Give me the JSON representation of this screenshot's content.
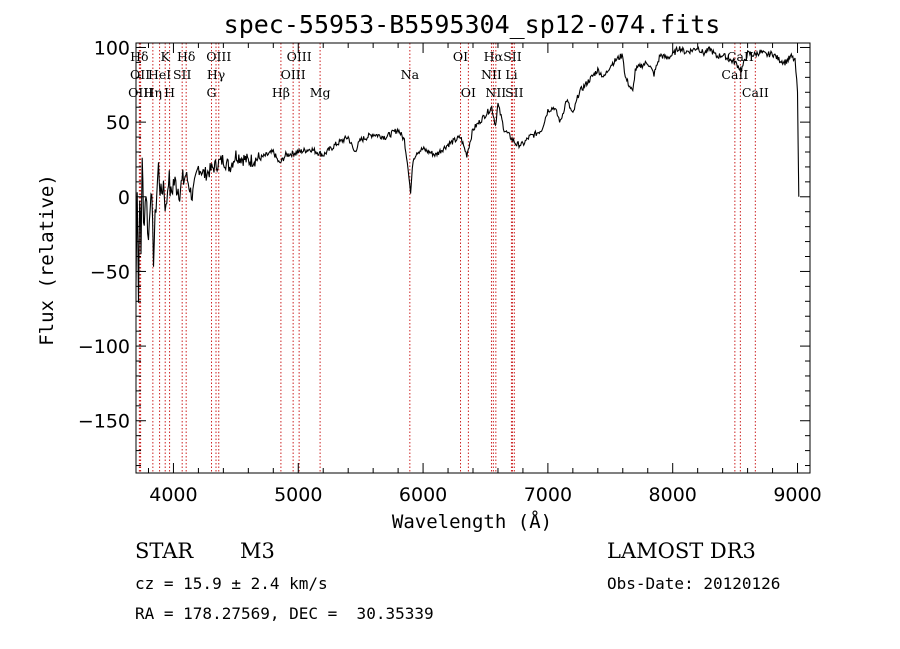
{
  "chart_data": {
    "type": "line",
    "title": "spec-55953-B5595304_sp12-074.fits",
    "xlabel": "Wavelength (Å)",
    "ylabel": "Flux (relative)",
    "xlim": [
      3700,
      9100
    ],
    "ylim": [
      -185,
      103
    ],
    "x_ticks": [
      4000,
      5000,
      6000,
      7000,
      8000,
      9000
    ],
    "y_ticks": [
      -150,
      -100,
      -50,
      0,
      50,
      100
    ],
    "x_tick_labels": [
      "4000",
      "5000",
      "6000",
      "7000",
      "8000",
      "9000"
    ],
    "y_tick_labels": [
      "−150",
      "−100",
      "−50",
      "0",
      "50",
      "100"
    ],
    "series": [
      {
        "name": "flux",
        "x": [
          3700,
          3710,
          3720,
          3730,
          3740,
          3750,
          3760,
          3780,
          3800,
          3820,
          3840,
          3860,
          3880,
          3900,
          3920,
          3940,
          3960,
          3980,
          4000,
          4050,
          4100,
          4150,
          4200,
          4250,
          4300,
          4350,
          4400,
          4450,
          4500,
          4600,
          4700,
          4800,
          4850,
          4900,
          5000,
          5100,
          5200,
          5300,
          5400,
          5450,
          5500,
          5600,
          5700,
          5800,
          5850,
          5880,
          5900,
          5920,
          5950,
          6000,
          6100,
          6200,
          6300,
          6350,
          6400,
          6450,
          6500,
          6550,
          6580,
          6600,
          6650,
          6700,
          6750,
          6800,
          6850,
          6900,
          6950,
          7000,
          7050,
          7100,
          7150,
          7200,
          7250,
          7300,
          7400,
          7450,
          7500,
          7550,
          7600,
          7620,
          7650,
          7680,
          7700,
          7750,
          7800,
          7850,
          7900,
          7950,
          8000,
          8050,
          8100,
          8150,
          8200,
          8250,
          8300,
          8350,
          8400,
          8450,
          8500,
          8550,
          8600,
          8650,
          8700,
          8750,
          8800,
          8850,
          8900,
          8950,
          8980,
          9000,
          9010
        ],
        "y": [
          -60,
          10,
          -70,
          5,
          -40,
          30,
          -20,
          5,
          -30,
          10,
          -40,
          -5,
          20,
          0,
          10,
          -10,
          15,
          0,
          10,
          5,
          15,
          0,
          20,
          15,
          18,
          22,
          25,
          20,
          28,
          24,
          26,
          30,
          22,
          28,
          30,
          32,
          28,
          35,
          40,
          30,
          38,
          42,
          40,
          45,
          38,
          20,
          2,
          25,
          30,
          32,
          28,
          35,
          40,
          28,
          45,
          50,
          55,
          60,
          48,
          62,
          45,
          40,
          35,
          35,
          40,
          42,
          45,
          58,
          60,
          50,
          65,
          55,
          70,
          75,
          85,
          80,
          88,
          92,
          95,
          80,
          75,
          70,
          85,
          88,
          90,
          82,
          95,
          93,
          95,
          100,
          97,
          98,
          100,
          96,
          99,
          94,
          95,
          92,
          90,
          85,
          96,
          95,
          97,
          95,
          96,
          92,
          90,
          94,
          91,
          70,
          0
        ]
      }
    ],
    "line_markers": [
      {
        "label": "Hδ",
        "wave": 3727,
        "row": 0
      },
      {
        "label": "OII",
        "wave": 3733,
        "row": 1
      },
      {
        "label": "OIII",
        "wave": 3737,
        "row": 2
      },
      {
        "label": "K",
        "wave": 3934,
        "row": 0
      },
      {
        "label": "HeI",
        "wave": 3889,
        "row": 1
      },
      {
        "label": "Hη",
        "wave": 3835,
        "row": 2
      },
      {
        "label": "SII",
        "wave": 4070,
        "row": 1
      },
      {
        "label": "H",
        "wave": 3969,
        "row": 2
      },
      {
        "label": "Hδ",
        "wave": 4102,
        "row": 0
      },
      {
        "label": "OIII",
        "wave": 4363,
        "row": 0
      },
      {
        "label": "Hγ",
        "wave": 4341,
        "row": 1
      },
      {
        "label": "G",
        "wave": 4305,
        "row": 2
      },
      {
        "label": "Hβ",
        "wave": 4861,
        "row": 2
      },
      {
        "label": "OIII",
        "wave": 5007,
        "row": 0
      },
      {
        "label": "OIII",
        "wave": 4959,
        "row": 1
      },
      {
        "label": "Mg",
        "wave": 5175,
        "row": 2
      },
      {
        "label": "Na",
        "wave": 5894,
        "row": 1
      },
      {
        "label": "OI",
        "wave": 6300,
        "row": 0
      },
      {
        "label": "OI",
        "wave": 6363,
        "row": 2
      },
      {
        "label": "Hα",
        "wave": 6563,
        "row": 0
      },
      {
        "label": "SII",
        "wave": 6716,
        "row": 0
      },
      {
        "label": "NII",
        "wave": 6548,
        "row": 1
      },
      {
        "label": "Li",
        "wave": 6708,
        "row": 1
      },
      {
        "label": "NII",
        "wave": 6583,
        "row": 2
      },
      {
        "label": "SII",
        "wave": 6731,
        "row": 2
      },
      {
        "label": "CaII",
        "wave": 8542,
        "row": 0
      },
      {
        "label": "CaII",
        "wave": 8498,
        "row": 1
      },
      {
        "label": "CaII",
        "wave": 8662,
        "row": 2
      }
    ]
  },
  "info": {
    "object_class": "STAR",
    "subclass": "M3",
    "survey": "LAMOST DR3",
    "cz": "cz = 15.9 ± 2.4 km/s",
    "obs_date": "Obs-Date: 20120126",
    "coords": "RA = 178.27569, DEC =  30.35339"
  },
  "colors": {
    "spectrum": "#000000",
    "line_marker": "#cc2222",
    "axis": "#000000"
  }
}
